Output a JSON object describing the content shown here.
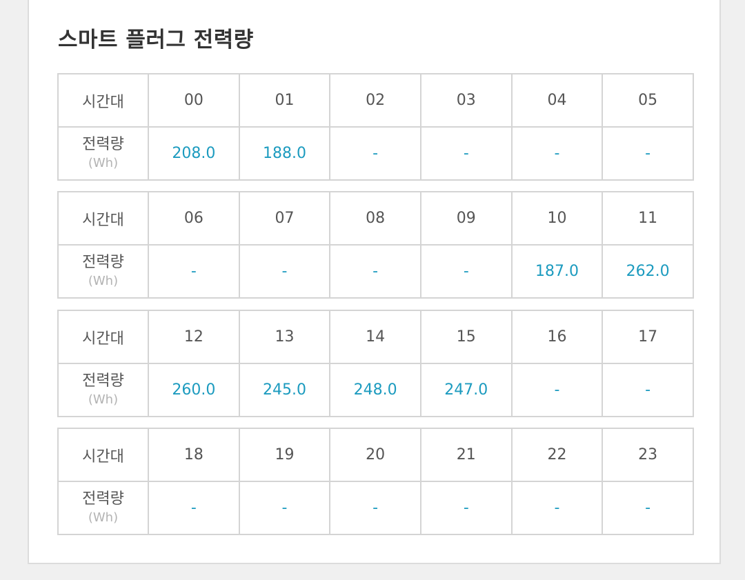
{
  "title": "스마트 플러그 전력량",
  "row_labels": {
    "time": "시간대",
    "power": "전력량",
    "unit": "(Wh)"
  },
  "blocks": [
    {
      "hours": [
        "00",
        "01",
        "02",
        "03",
        "04",
        "05"
      ],
      "values": [
        "208.0",
        "188.0",
        "-",
        "-",
        "-",
        "-"
      ]
    },
    {
      "hours": [
        "06",
        "07",
        "08",
        "09",
        "10",
        "11"
      ],
      "values": [
        "-",
        "-",
        "-",
        "-",
        "187.0",
        "262.0"
      ]
    },
    {
      "hours": [
        "12",
        "13",
        "14",
        "15",
        "16",
        "17"
      ],
      "values": [
        "260.0",
        "245.0",
        "248.0",
        "247.0",
        "-",
        "-"
      ]
    },
    {
      "hours": [
        "18",
        "19",
        "20",
        "21",
        "22",
        "23"
      ],
      "values": [
        "-",
        "-",
        "-",
        "-",
        "-",
        "-"
      ]
    }
  ],
  "colors": {
    "value": "#1c9bbf",
    "text": "#555555",
    "border": "#d4d4d4",
    "unit": "#b3b3b3"
  }
}
